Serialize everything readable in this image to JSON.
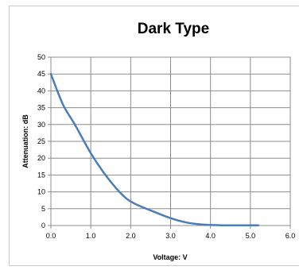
{
  "chart_data": {
    "type": "line",
    "title": "Dark Type",
    "xlabel": "Voltage: V",
    "ylabel": "Attenuation: dB",
    "xlim": [
      0,
      6
    ],
    "ylim": [
      0,
      50
    ],
    "x_ticks": [
      "0.0",
      "1.0",
      "2.0",
      "3.0",
      "4.0",
      "5.0",
      "6.0"
    ],
    "y_ticks": [
      "0",
      "5",
      "10",
      "15",
      "20",
      "25",
      "30",
      "35",
      "40",
      "45",
      "50"
    ],
    "grid": true,
    "legend": "none",
    "series": [
      {
        "color": "#4a7ebb",
        "x": [
          0.0,
          0.3,
          0.6,
          1.0,
          1.4,
          1.8,
          2.1,
          2.5,
          3.0,
          3.4,
          3.8,
          4.2,
          4.7,
          5.2
        ],
        "y": [
          45.0,
          36.0,
          30.0,
          21.5,
          14.5,
          9.0,
          6.5,
          4.5,
          2.2,
          0.9,
          0.3,
          0.1,
          0.05,
          0.05
        ]
      }
    ]
  }
}
